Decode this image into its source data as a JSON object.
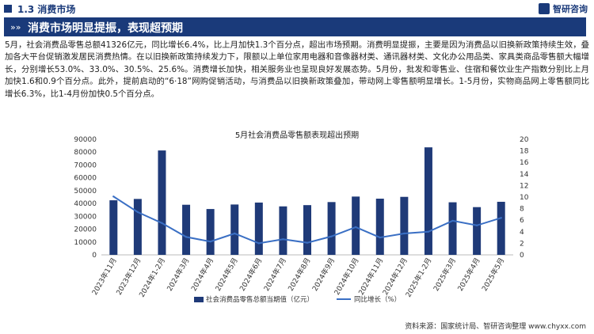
{
  "header": {
    "section": "1.3 消费市场",
    "brand": "智研咨询"
  },
  "banner": {
    "chevrons": "»»",
    "title": "消费市场明显提振，表现超预期"
  },
  "paragraph": "5月，社会消费品零售总额41326亿元，同比增长6.4%，比上月加快1.3个百分点，超出市场预期。消费明显提振，主要是因为消费品以旧换新政策持续生效，叠加各大平台促销激发居民消费热情。在以旧换新政策持续发力下，限额以上单位家用电器和音像器材类、通讯器材类、文化办公用品类、家具类商品零售额大幅增长，分别增长53.0%、33.0%、30.5%、25.6%。消费增长加快，相关服务业也呈现良好发展态势。5月份，批发和零售业、住宿和餐饮业生产指数分别比上月加快1.6和0.9个百分点。此外，提前启动的“6·18”网购促销活动，与消费品以旧换新政策叠加，带动网上零售额明显增长。1-5月份，实物商品网上零售额同比增长6.3%，比1-4月份加快0.5个百分点。",
  "chart_data": {
    "type": "bar+line",
    "title": "5月社会消费品零售额表现超出预期",
    "categories": [
      "2023年11月",
      "2023年12月",
      "2024年1-2月",
      "2024年3月",
      "2024年4月",
      "2024年5月",
      "2024年6月",
      "2024年7月",
      "2024年8月",
      "2024年9月",
      "2024年10月",
      "2024年11月",
      "2024年12月",
      "2025年1-2月",
      "2025年3月",
      "2025年4月",
      "2025年5月"
    ],
    "series": [
      {
        "name": "社会消费品零售总额当期值（亿元）",
        "type": "bar",
        "axis": "left",
        "values": [
          42505,
          43550,
          81307,
          39020,
          35699,
          39211,
          40732,
          37757,
          38726,
          41112,
          45396,
          43763,
          45172,
          83731,
          40940,
          37174,
          41326
        ]
      },
      {
        "name": "同比增长（%）",
        "type": "line",
        "axis": "right",
        "values": [
          10.1,
          7.4,
          5.5,
          3.1,
          2.3,
          3.7,
          2.0,
          2.7,
          2.1,
          3.2,
          4.8,
          3.0,
          3.7,
          4.0,
          5.9,
          5.1,
          6.4
        ]
      }
    ],
    "y_left": {
      "min": 0,
      "max": 90000,
      "ticks": [
        "0",
        "10000",
        "20000",
        "30000",
        "40000",
        "50000",
        "60000",
        "70000",
        "80000",
        "90000"
      ]
    },
    "y_right": {
      "min": 0,
      "max": 20,
      "ticks": [
        "0",
        "2",
        "4",
        "6",
        "8",
        "10",
        "12",
        "14",
        "16",
        "18",
        "20"
      ]
    },
    "colors": {
      "bar": "#1f3a78",
      "line": "#3a6fc4"
    },
    "legend_position": "bottom"
  },
  "footer": "资料来源：国家统计局、智研咨询整理    www.chyxx.com"
}
